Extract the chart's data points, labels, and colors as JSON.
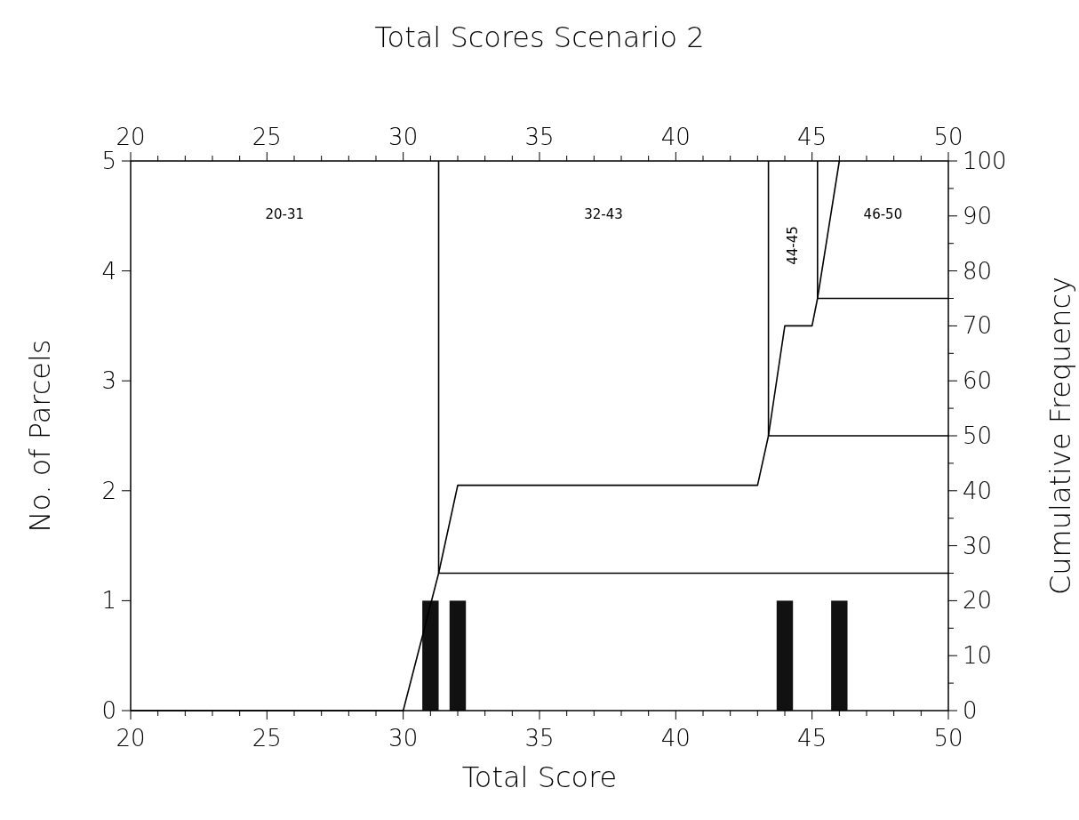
{
  "chart_data": {
    "type": "bar",
    "title": "Total Scores Scenario 2",
    "xlabel": "Total Score",
    "ylabel": "No. of Parcels",
    "y2label": "Cumulative Frequency",
    "xlim": [
      20,
      50
    ],
    "ylim": [
      0,
      5
    ],
    "y2lim": [
      0,
      100
    ],
    "x2lim": [
      20,
      50
    ],
    "xticks": [
      20,
      {
        "value": 21,
        "label": null
      },
      {
        "value": 22,
        "label": null
      },
      {
        "value": 23,
        "label": null
      },
      {
        "value": 24,
        "label": null
      },
      25,
      {
        "value": 26,
        "label": null
      },
      {
        "value": 27,
        "label": null
      },
      {
        "value": 28,
        "label": null
      },
      {
        "value": 29,
        "label": null
      },
      30,
      {
        "value": 31,
        "label": null
      },
      {
        "value": 32,
        "label": null
      },
      {
        "value": 33,
        "label": null
      },
      {
        "value": 34,
        "label": null
      },
      35,
      {
        "value": 36,
        "label": null
      },
      {
        "value": 37,
        "label": null
      },
      {
        "value": 38,
        "label": null
      },
      {
        "value": 39,
        "label": null
      },
      40,
      {
        "value": 41,
        "label": null
      },
      {
        "value": 42,
        "label": null
      },
      {
        "value": 43,
        "label": null
      },
      {
        "value": 44,
        "label": null
      },
      45,
      {
        "value": 46,
        "label": null
      },
      {
        "value": 47,
        "label": null
      },
      {
        "value": 48,
        "label": null
      },
      {
        "value": 49,
        "label": null
      },
      50
    ],
    "x2ticks": [
      20,
      {
        "value": 21,
        "label": null
      },
      {
        "value": 22,
        "label": null
      },
      {
        "value": 23,
        "label": null
      },
      {
        "value": 24,
        "label": null
      },
      25,
      {
        "value": 26,
        "label": null
      },
      {
        "value": 27,
        "label": null
      },
      {
        "value": 28,
        "label": null
      },
      {
        "value": 29,
        "label": null
      },
      30,
      {
        "value": 31,
        "label": null
      },
      {
        "value": 32,
        "label": null
      },
      {
        "value": 33,
        "label": null
      },
      {
        "value": 34,
        "label": null
      },
      35,
      {
        "value": 36,
        "label": null
      },
      {
        "value": 37,
        "label": null
      },
      {
        "value": 38,
        "label": null
      },
      {
        "value": 39,
        "label": null
      },
      40,
      {
        "value": 41,
        "label": null
      },
      {
        "value": 42,
        "label": null
      },
      {
        "value": 43,
        "label": null
      },
      {
        "value": 44,
        "label": null
      },
      45,
      {
        "value": 46,
        "label": null
      },
      {
        "value": 47,
        "label": null
      },
      {
        "value": 48,
        "label": null
      },
      {
        "value": 49,
        "label": null
      },
      50
    ],
    "yticks": [
      0,
      1,
      2,
      3,
      4,
      5
    ],
    "y2ticks": [
      0,
      {
        "value": 5,
        "label": null
      },
      10,
      {
        "value": 15,
        "label": null
      },
      20,
      {
        "value": 25,
        "label": null
      },
      30,
      {
        "value": 35,
        "label": null
      },
      40,
      {
        "value": 45,
        "label": null
      },
      50,
      {
        "value": 55,
        "label": null
      },
      60,
      {
        "value": 65,
        "label": null
      },
      70,
      {
        "value": 75,
        "label": null
      },
      80,
      {
        "value": 85,
        "label": null
      },
      90,
      {
        "value": 95,
        "label": null
      },
      100
    ],
    "series": [
      {
        "color": "#111111",
        "x": [
          31,
          32,
          44,
          46
        ],
        "values": [
          1,
          1,
          1,
          1
        ]
      },
      {
        "type": "line",
        "axis": "y2",
        "color": "#000000",
        "x": [
          20,
          30,
          31.3,
          32,
          43,
          43.4,
          44,
          45,
          45.2,
          46
        ],
        "values": [
          0,
          0,
          25,
          41,
          41,
          50,
          70,
          70,
          75,
          100
        ]
      },
      {
        "type": "line",
        "axis": "y2",
        "color": "#000000",
        "x": [
          50,
          31.3,
          31.3
        ],
        "values": [
          25,
          25,
          100
        ]
      },
      {
        "type": "line",
        "axis": "y2",
        "color": "#000000",
        "x": [
          50,
          43.4,
          43.4
        ],
        "values": [
          50,
          50,
          100
        ]
      },
      {
        "type": "line",
        "axis": "y2",
        "color": "#000000",
        "x": [
          50,
          45.2,
          45.2
        ],
        "values": [
          75,
          75,
          100
        ]
      }
    ],
    "annotations": [
      "20-31",
      "32-43",
      "44-45",
      "46-50"
    ]
  }
}
